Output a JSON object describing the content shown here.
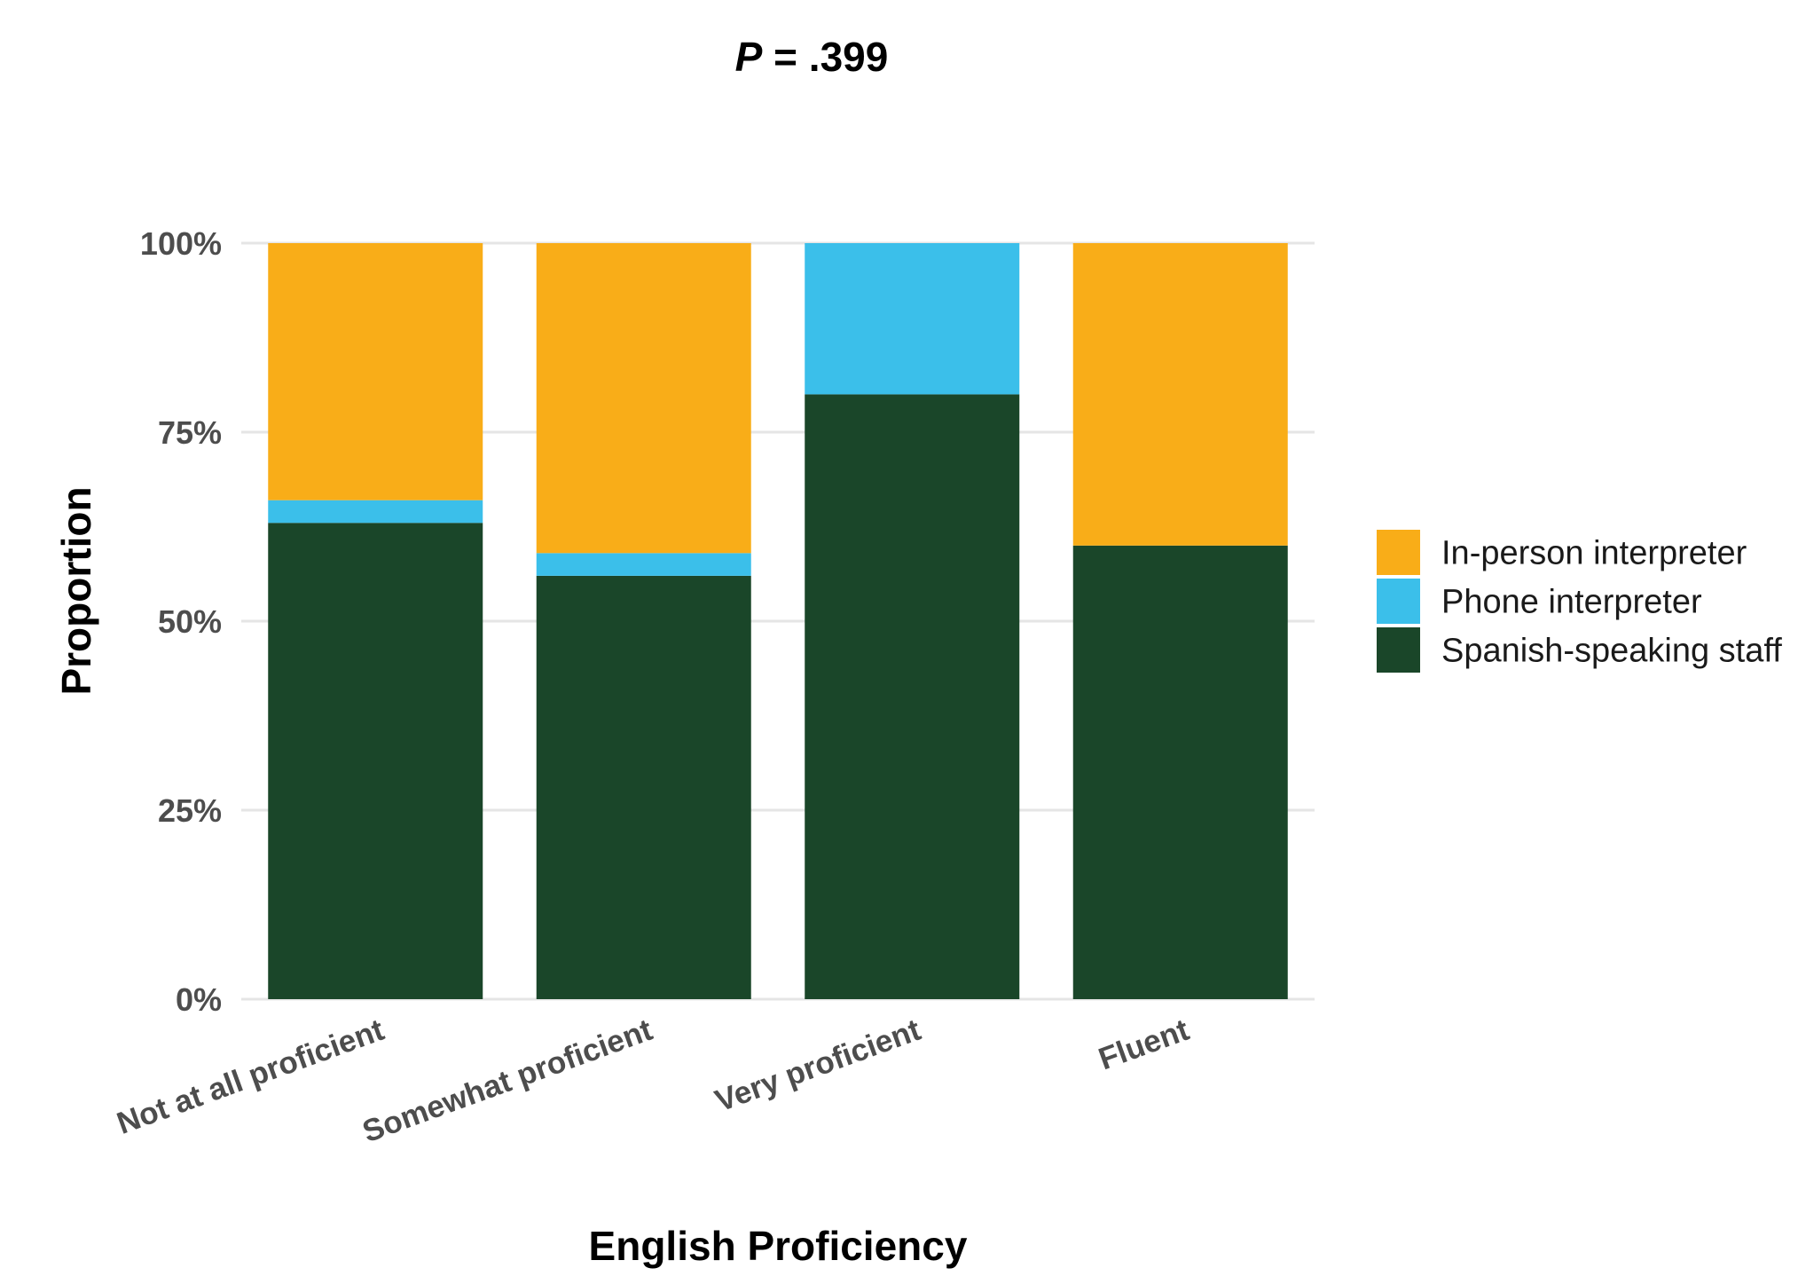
{
  "chart_data": {
    "type": "bar",
    "stacked": true,
    "subtitle_italic": "P",
    "subtitle_rest": " = .399",
    "xlabel": "English Proficiency",
    "ylabel": "Proportion",
    "categories": [
      "Not at all proficient",
      "Somewhat proficient",
      "Very proficient",
      "Fluent"
    ],
    "series": [
      {
        "name": "Spanish-speaking staff",
        "values": [
          0.63,
          0.56,
          0.8,
          0.6
        ],
        "color": "#1a4629"
      },
      {
        "name": "Phone interpreter",
        "values": [
          0.03,
          0.03,
          0.2,
          0.0
        ],
        "color": "#3bbfea"
      },
      {
        "name": "In-person interpreter",
        "values": [
          0.34,
          0.41,
          0.0,
          0.4
        ],
        "color": "#f9ad18"
      }
    ],
    "legend_order": [
      "In-person interpreter",
      "Phone interpreter",
      "Spanish-speaking staff"
    ],
    "ylim": [
      0,
      1
    ],
    "yticks": [
      0,
      0.25,
      0.5,
      0.75,
      1.0
    ],
    "ytick_labels": [
      "0%",
      "25%",
      "50%",
      "75%",
      "100%"
    ],
    "grid": true,
    "legend_position": "right"
  }
}
